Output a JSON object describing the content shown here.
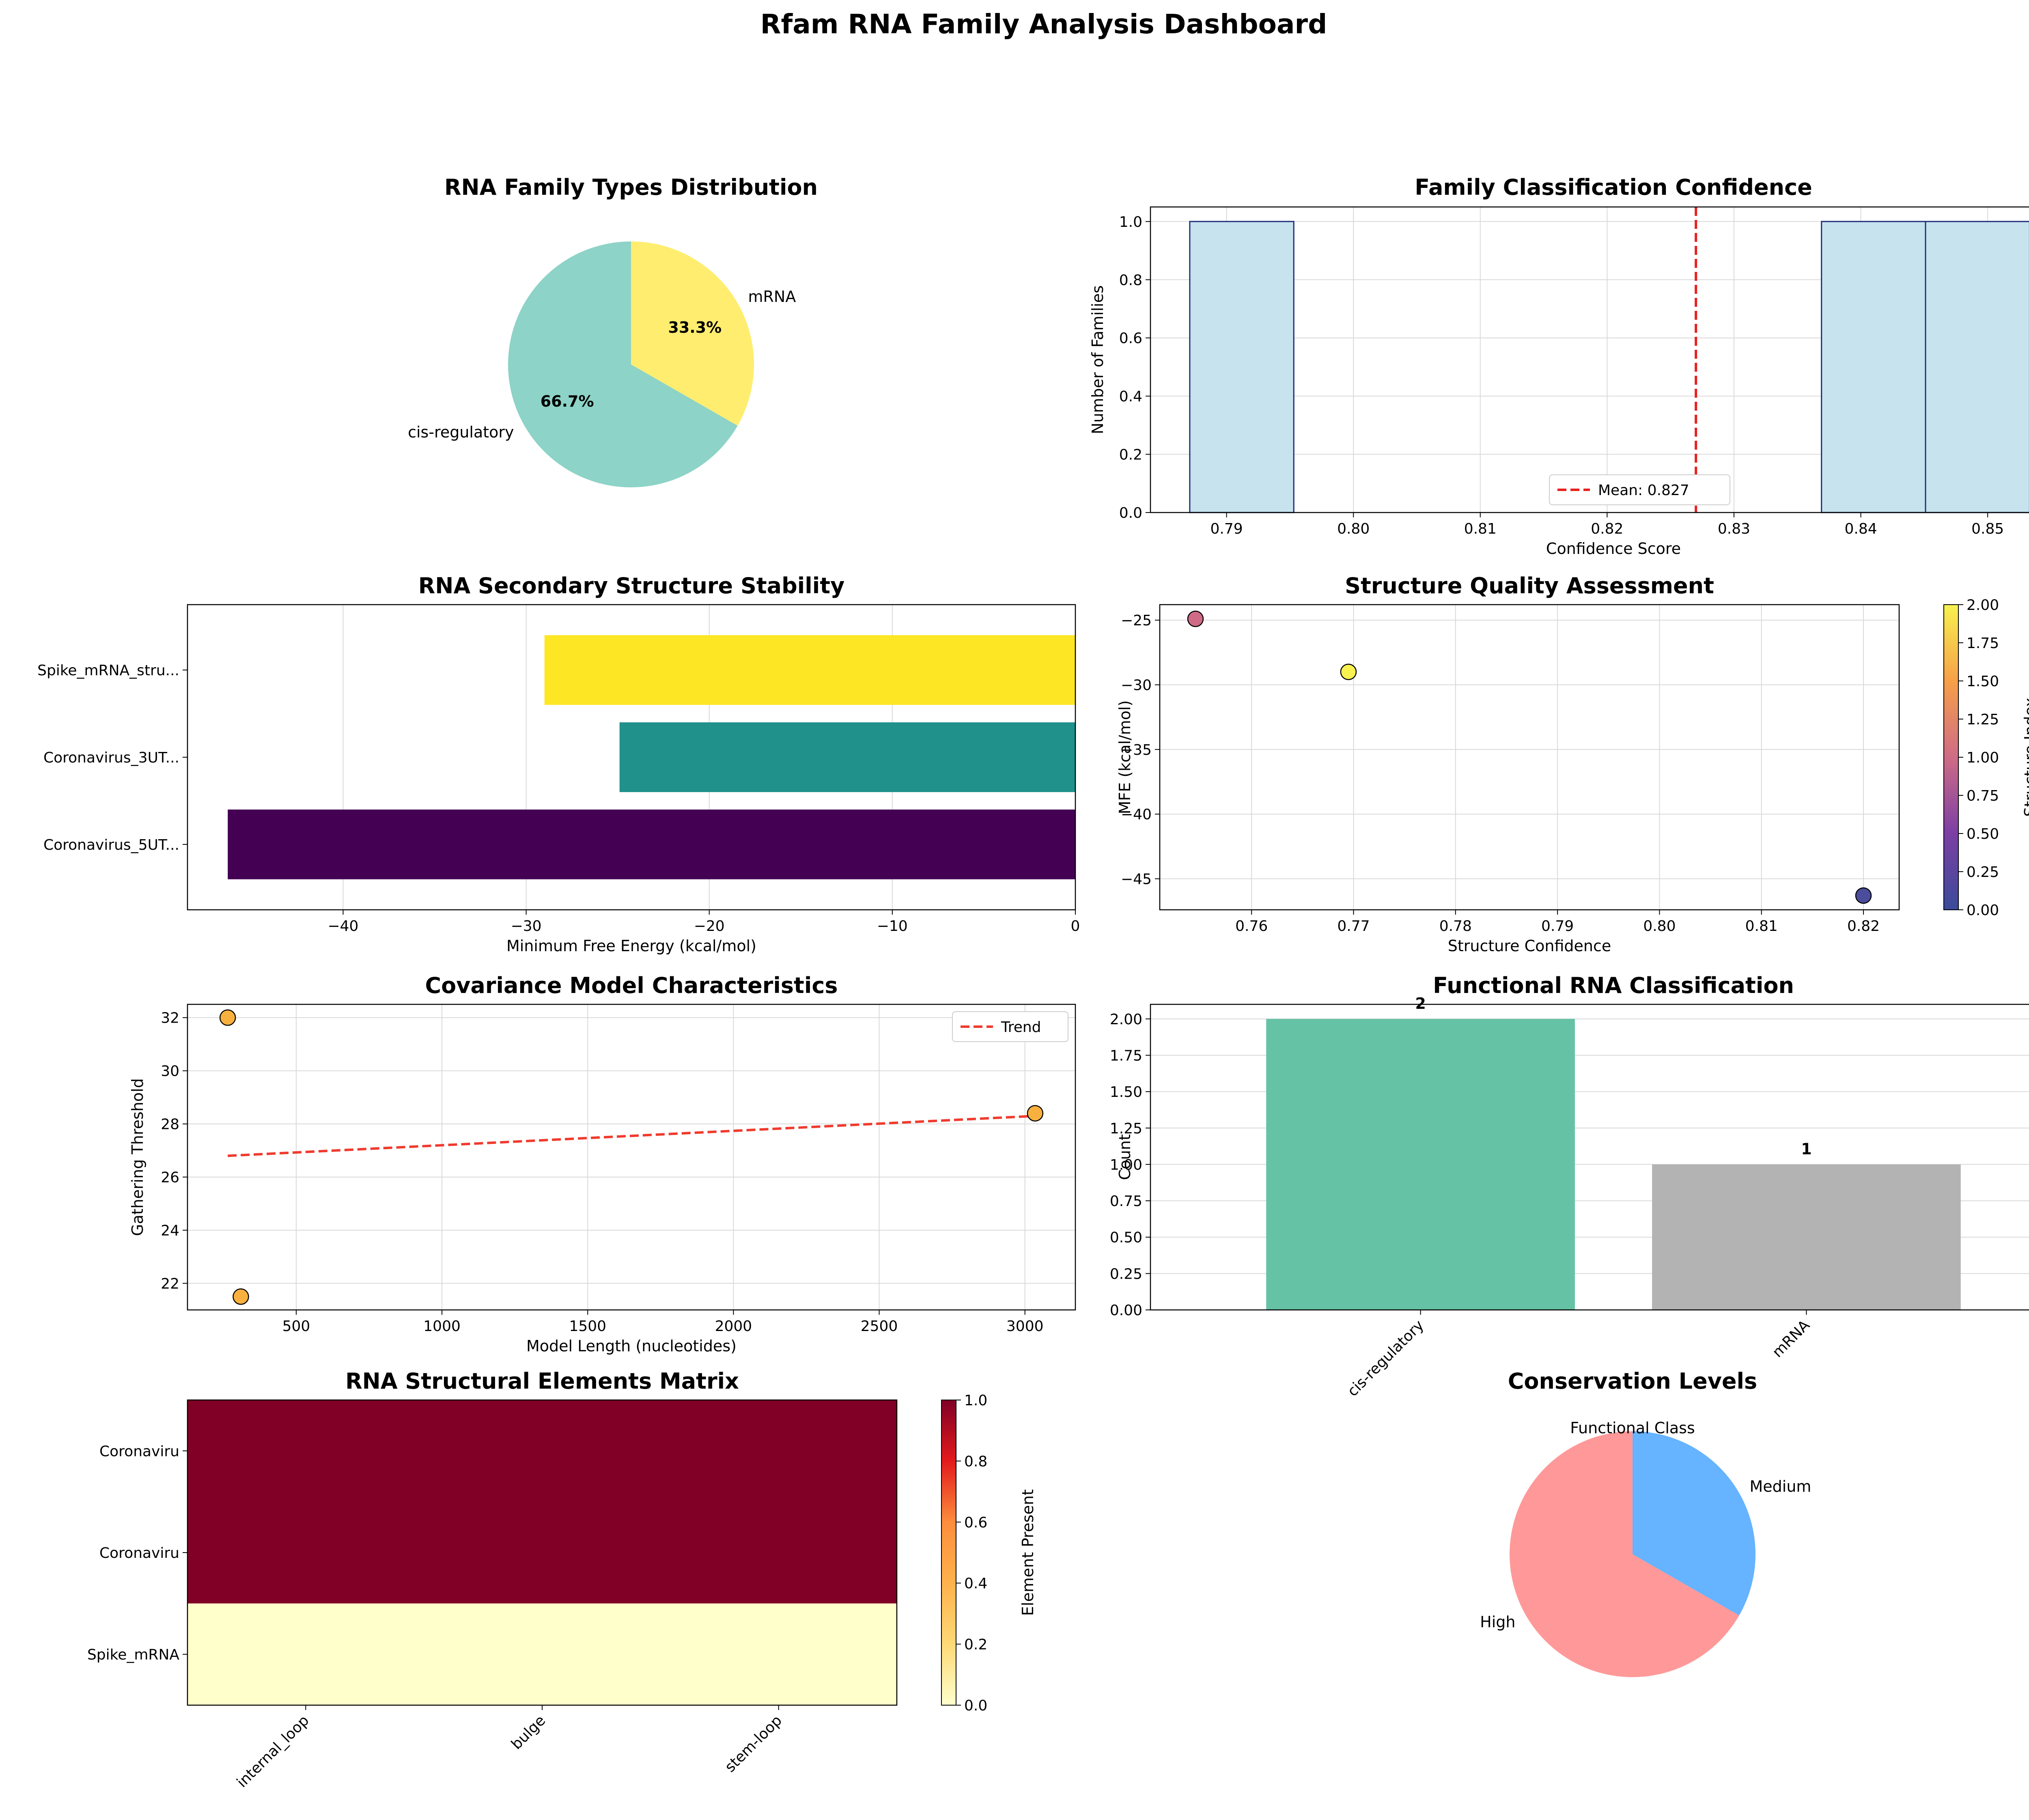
{
  "page_title": "Rfam RNA Family Analysis Dashboard",
  "chart_data": [
    {
      "id": "family-types",
      "type": "pie",
      "title": "RNA Family Types Distribution",
      "labels": [
        "cis-regulatory",
        "mRNA"
      ],
      "values": [
        66.7,
        33.3
      ],
      "pct_labels": [
        "66.7%",
        "33.3%"
      ],
      "colors": [
        "#8dd3c7",
        "#ffed6f"
      ]
    },
    {
      "id": "confidence-hist",
      "type": "bar",
      "title": "Family Classification Confidence",
      "xlabel": "Confidence Score",
      "ylabel": "Number of Families",
      "bins": [
        {
          "x0": 0.7871,
          "x1": 0.7953,
          "count": 1
        },
        {
          "x0": 0.8369,
          "x1": 0.8451,
          "count": 1
        },
        {
          "x0": 0.8451,
          "x1": 0.8533,
          "count": 1
        }
      ],
      "mean": 0.827,
      "mean_label": "Mean: 0.827",
      "xlim": [
        0.784,
        0.857
      ],
      "ylim": [
        0,
        1.05
      ],
      "xticks": [
        "0.79",
        "0.80",
        "0.81",
        "0.82",
        "0.83",
        "0.84",
        "0.85"
      ],
      "xtick_values": [
        0.79,
        0.8,
        0.81,
        0.82,
        0.83,
        0.84,
        0.85
      ],
      "yticks": [
        "0.0",
        "0.2",
        "0.4",
        "0.6",
        "0.8",
        "1.0"
      ],
      "ytick_values": [
        0,
        0.2,
        0.4,
        0.6,
        0.8,
        1.0
      ],
      "grid": true,
      "legend": "bottom-center"
    },
    {
      "id": "mfe-bars",
      "type": "bar",
      "title": "RNA Secondary Structure Stability",
      "xlabel": "Minimum Free Energy (kcal/mol)",
      "categories": [
        "Coronavirus_5UT...",
        "Coronavirus_3UT...",
        "Spike_mRNA_stru..."
      ],
      "values": [
        -46.3,
        -24.9,
        -29.0
      ],
      "colors": [
        "#440154",
        "#21918c",
        "#fde725"
      ],
      "xlim": [
        -48.5,
        0
      ],
      "xticks": [
        "−40",
        "−30",
        "−20",
        "−10",
        "0"
      ],
      "xtick_values": [
        -40,
        -30,
        -20,
        -10,
        0
      ],
      "grid": true
    },
    {
      "id": "quality-scatter",
      "type": "scatter",
      "title": "Structure Quality Assessment",
      "xlabel": "Structure Confidence",
      "ylabel": "MFE (kcal/mol)",
      "colorbar_label": "Structure Index",
      "points": [
        {
          "x": 0.82,
          "y": -46.3,
          "index": 0,
          "color": "#4b4d9c"
        },
        {
          "x": 0.7545,
          "y": -24.9,
          "index": 1,
          "color": "#cf6b86"
        },
        {
          "x": 0.7695,
          "y": -29.0,
          "index": 2,
          "color": "#f7f24f"
        }
      ],
      "xlim": [
        0.751,
        0.8235
      ],
      "ylim": [
        -47.4,
        -23.8
      ],
      "xticks": [
        "0.76",
        "0.77",
        "0.78",
        "0.79",
        "0.80",
        "0.81",
        "0.82"
      ],
      "xtick_values": [
        0.76,
        0.77,
        0.78,
        0.79,
        0.8,
        0.81,
        0.82
      ],
      "yticks": [
        "−45",
        "−40",
        "−35",
        "−30",
        "−25"
      ],
      "ytick_values": [
        -45,
        -40,
        -35,
        -30,
        -25
      ],
      "cbar_ticks": [
        "0.00",
        "0.25",
        "0.50",
        "0.75",
        "1.00",
        "1.25",
        "1.50",
        "1.75",
        "2.00"
      ],
      "cbar_range": [
        0,
        2
      ],
      "grid": true
    },
    {
      "id": "cm-scatter",
      "type": "scatter",
      "title": "Covariance Model Characteristics",
      "xlabel": "Model Length (nucleotides)",
      "ylabel": "Gathering Threshold",
      "points": [
        {
          "x": 265,
          "y": 32.0
        },
        {
          "x": 310,
          "y": 21.5
        },
        {
          "x": 3035,
          "y": 28.4
        }
      ],
      "trend": {
        "x0": 265,
        "y0": 26.8,
        "x1": 3035,
        "y1": 28.3
      },
      "trend_label": "Trend",
      "xlim": [
        127,
        3173
      ],
      "ylim": [
        21.0,
        32.5
      ],
      "xticks": [
        "500",
        "1000",
        "1500",
        "2000",
        "2500",
        "3000"
      ],
      "xtick_values": [
        500,
        1000,
        1500,
        2000,
        2500,
        3000
      ],
      "yticks": [
        "22",
        "24",
        "26",
        "28",
        "30",
        "32"
      ],
      "ytick_values": [
        22,
        24,
        26,
        28,
        30,
        32
      ],
      "grid": true,
      "legend": "top-right"
    },
    {
      "id": "functional-bars",
      "type": "bar",
      "title": "Functional RNA Classification",
      "ylabel": "Count",
      "categories": [
        "cis-regulatory",
        "mRNA"
      ],
      "values": [
        2,
        1
      ],
      "value_labels": [
        "2",
        "1"
      ],
      "colors": [
        "#66c2a5",
        "#b3b3b3"
      ],
      "ylim": [
        0,
        2.1
      ],
      "yticks": [
        "0.00",
        "0.25",
        "0.50",
        "0.75",
        "1.00",
        "1.25",
        "1.50",
        "1.75",
        "2.00"
      ],
      "ytick_values": [
        0,
        0.25,
        0.5,
        0.75,
        1.0,
        1.25,
        1.5,
        1.75,
        2.0
      ],
      "grid": true
    },
    {
      "id": "elements-heatmap",
      "type": "heatmap",
      "title": "RNA Structural Elements Matrix",
      "rows": [
        "Coronaviru",
        "Coronaviru",
        "Spike_mRNA"
      ],
      "columns": [
        "internal_loop",
        "bulge",
        "stem-loop"
      ],
      "values": [
        [
          1,
          1,
          1
        ],
        [
          1,
          1,
          1
        ],
        [
          0,
          0,
          0
        ]
      ],
      "colorbar_label": "Element Present",
      "cbar_ticks": [
        "0.0",
        "0.2",
        "0.4",
        "0.6",
        "0.8",
        "1.0"
      ],
      "cbar_range": [
        0,
        1
      ]
    },
    {
      "id": "conservation-pie",
      "type": "pie",
      "title": "Conservation Levels",
      "labels": [
        "High",
        "Medium"
      ],
      "values": [
        66.7,
        33.3
      ],
      "colors": [
        "#ff9999",
        "#66b3ff"
      ],
      "overlay_text": "Functional Class"
    }
  ]
}
